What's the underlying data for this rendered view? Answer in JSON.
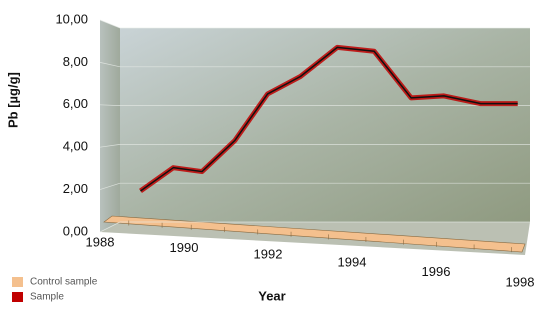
{
  "chart_data": {
    "type": "line",
    "x_label": "Year",
    "y_label": "Pb [µg/g]",
    "x": [
      1988.5,
      1989.3,
      1990,
      1990.8,
      1991.6,
      1992.4,
      1993.3,
      1994.2,
      1995.1,
      1995.9,
      1996.8,
      1997.7
    ],
    "series": [
      {
        "name": "Control sample",
        "color": "#f4c08e",
        "values": [
          0,
          0,
          0,
          0,
          0,
          0,
          0,
          0,
          0,
          0,
          0,
          0
        ]
      },
      {
        "name": "Sample",
        "color": "#c00000",
        "values": [
          1.6,
          2.8,
          2.6,
          4.2,
          6.6,
          7.5,
          9.0,
          8.8,
          6.4,
          6.5,
          6.1,
          6.1
        ]
      }
    ],
    "xlim": [
      1988,
      1998
    ],
    "xticks": [
      1988,
      1990,
      1992,
      1994,
      1996,
      1998
    ],
    "ylim": [
      0,
      10
    ],
    "yticks": [
      {
        "value": 0,
        "label": "0,00"
      },
      {
        "value": 2,
        "label": "2,00"
      },
      {
        "value": 4,
        "label": "4,00"
      },
      {
        "value": 6,
        "label": "6,00"
      },
      {
        "value": 8,
        "label": "8,00"
      },
      {
        "value": 10,
        "label": "10,00"
      }
    ],
    "grid": true
  }
}
